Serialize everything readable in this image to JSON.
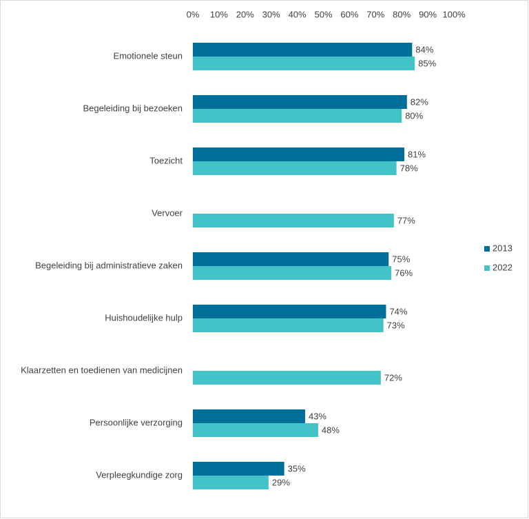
{
  "chart_data": {
    "type": "hbar",
    "categories": [
      "Emotionele steun",
      "Begeleiding bij bezoeken",
      "Toezicht",
      "Vervoer",
      "Begeleiding bij administratieve zaken",
      "Huishoudelijke hulp",
      "Klaarzetten en toedienen van medicijnen",
      "Persoonlijke verzorging",
      "Verpleegkundige zorg"
    ],
    "series": [
      {
        "name": "2013",
        "color": "#006f9a",
        "values": [
          84,
          82,
          81,
          null,
          75,
          74,
          null,
          43,
          35
        ],
        "value_labels": [
          "84%",
          "82%",
          "81%",
          null,
          "75%",
          "74%",
          null,
          "43%",
          "35%"
        ]
      },
      {
        "name": "2022",
        "color": "#43c3c8",
        "values": [
          85,
          80,
          78,
          77,
          76,
          73,
          72,
          48,
          29
        ],
        "value_labels": [
          "85%",
          "80%",
          "78%",
          "77%",
          "76%",
          "73%",
          "72%",
          "48%",
          "29%"
        ]
      }
    ],
    "xlim": [
      0,
      100
    ],
    "xticks": [
      {
        "value": 0,
        "label": "0%"
      },
      {
        "value": 10,
        "label": "10%"
      },
      {
        "value": 20,
        "label": "20%"
      },
      {
        "value": 30,
        "label": "30%"
      },
      {
        "value": 40,
        "label": "40%"
      },
      {
        "value": 50,
        "label": "50%"
      },
      {
        "value": 60,
        "label": "60%"
      },
      {
        "value": 70,
        "label": "70%"
      },
      {
        "value": 80,
        "label": "80%"
      },
      {
        "value": 90,
        "label": "90%"
      },
      {
        "value": 100,
        "label": "100%"
      }
    ],
    "xaxis_position": "top",
    "grid": false,
    "legend": "right"
  }
}
